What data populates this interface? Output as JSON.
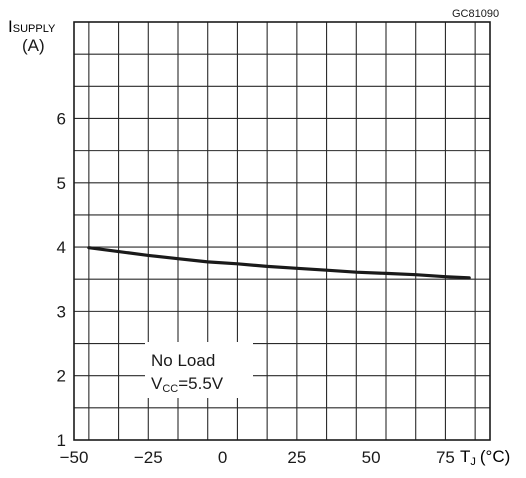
{
  "chart_data": {
    "type": "line",
    "figure_code": "GC81090",
    "ylabel": {
      "symbol": "I",
      "subscript": "SUPPLY",
      "unit": "(A)"
    },
    "xlabel": {
      "symbol": "T",
      "subscript": "J",
      "unit": "(°C)"
    },
    "xlim": [
      -50,
      90
    ],
    "ylim": [
      1,
      7.5
    ],
    "x_ticks": [
      -50,
      -25,
      0,
      25,
      50,
      75
    ],
    "x_tick_labels": [
      "−50",
      "−25",
      "0",
      "25",
      "50",
      "75"
    ],
    "y_ticks": [
      1,
      2,
      3,
      4,
      5,
      6
    ],
    "y_tick_labels": [
      "1",
      "2",
      "3",
      "4",
      "5",
      "6"
    ],
    "grid": true,
    "annotation": {
      "line1": "No Load",
      "line2_symbol": "V",
      "line2_sub": "CC",
      "line2_rest": "=5.5V"
    },
    "series": [
      {
        "x": [
          -45,
          -35,
          -25,
          -15,
          -5,
          5,
          15,
          25,
          35,
          45,
          55,
          65,
          75,
          83
        ],
        "y": [
          3.99,
          3.93,
          3.87,
          3.82,
          3.77,
          3.74,
          3.7,
          3.67,
          3.64,
          3.61,
          3.59,
          3.57,
          3.54,
          3.52
        ]
      }
    ]
  }
}
